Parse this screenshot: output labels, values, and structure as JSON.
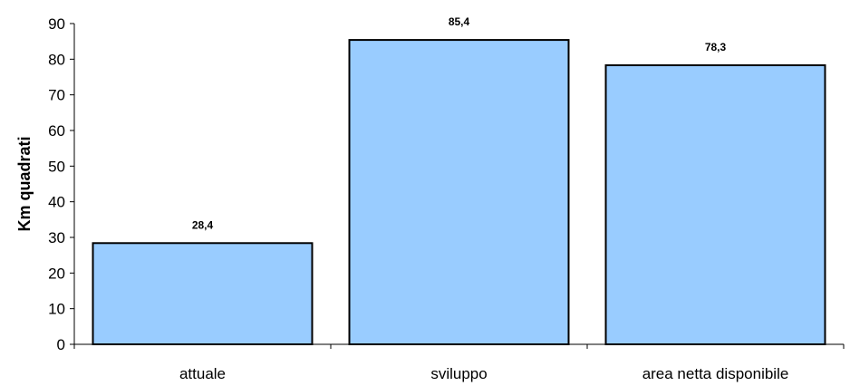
{
  "chart_data": {
    "type": "bar",
    "categories": [
      "attuale",
      "sviluppo",
      "area netta disponibile"
    ],
    "values": [
      28.4,
      85.4,
      78.3
    ],
    "value_labels": [
      "28,4",
      "85,4",
      "78,3"
    ],
    "title": "",
    "xlabel": "",
    "ylabel": "Km quadrati",
    "ylim": [
      0,
      90
    ],
    "yticks": [
      0,
      10,
      20,
      30,
      40,
      50,
      60,
      70,
      80,
      90
    ],
    "grid": false,
    "legend": "none",
    "colors": {
      "bar_fill": "#99ccff",
      "bar_stroke": "#000000",
      "axis": "#000000"
    }
  }
}
